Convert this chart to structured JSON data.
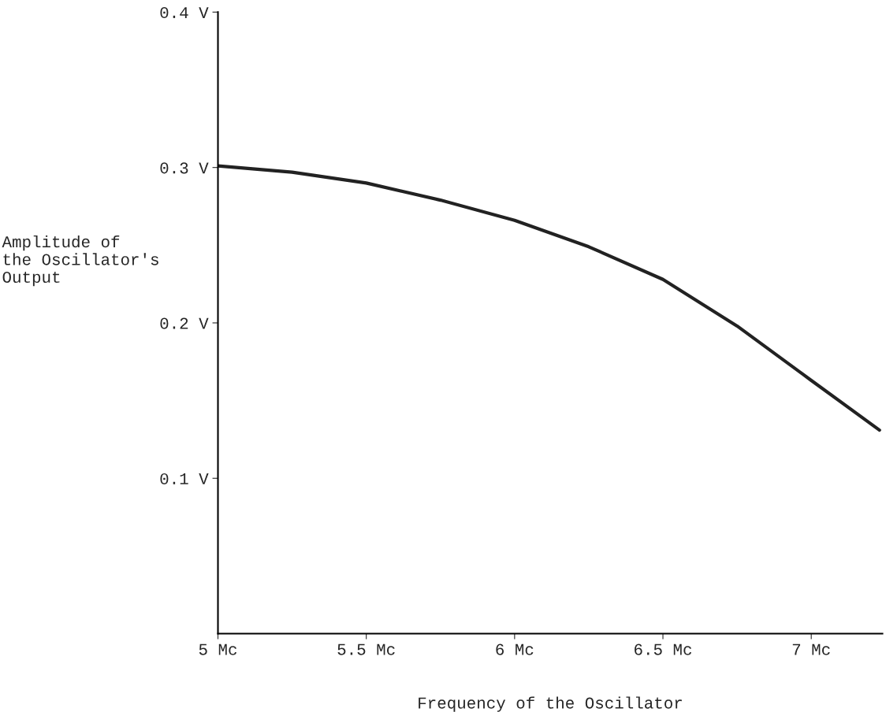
{
  "chart_data": {
    "type": "line",
    "xlabel": "Frequency of the Oscillator",
    "ylabel": "Amplitude of\nthe Oscillator's\nOutput",
    "x": [
      5,
      5.25,
      5.5,
      5.75,
      6,
      6.25,
      6.5,
      6.75,
      7,
      7.23
    ],
    "series": [
      {
        "color": "#222222",
        "values": [
          0.301,
          0.297,
          0.29,
          0.279,
          0.266,
          0.249,
          0.228,
          0.198,
          0.163,
          0.131
        ]
      }
    ],
    "xlim": [
      5,
      7.24
    ],
    "ylim": [
      0,
      0.4
    ],
    "xticks": [
      {
        "value": 5,
        "label": "5 Mc"
      },
      {
        "value": 5.5,
        "label": "5.5 Mc"
      },
      {
        "value": 6,
        "label": "6 Mc"
      },
      {
        "value": 6.5,
        "label": "6.5 Mc"
      },
      {
        "value": 7,
        "label": "7 Mc"
      }
    ],
    "yticks": [
      {
        "value": 0.1,
        "label": "0.1 V"
      },
      {
        "value": 0.2,
        "label": "0.2 V"
      },
      {
        "value": 0.3,
        "label": "0.3 V"
      },
      {
        "value": 0.4,
        "label": "0.4 V"
      }
    ],
    "grid": false,
    "legend": false,
    "marker": "none",
    "line_style": "solid"
  }
}
